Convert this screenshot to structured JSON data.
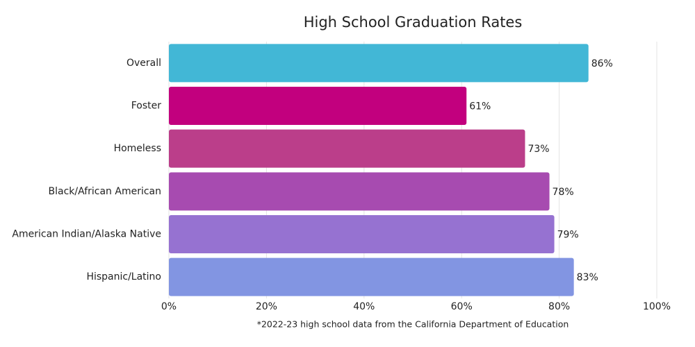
{
  "chart_data": {
    "type": "bar",
    "orientation": "horizontal",
    "title": "High School Graduation Rates",
    "categories": [
      "Overall",
      "Foster",
      "Homeless",
      "Black/African American",
      "American Indian/Alaska Native",
      "Hispanic/Latino"
    ],
    "values": [
      86,
      61,
      73,
      78,
      79,
      83
    ],
    "value_labels": [
      "86%",
      "61%",
      "73%",
      "78%",
      "79%",
      "83%"
    ],
    "colors": [
      "#42b7d6",
      "#c2007e",
      "#bb3e8a",
      "#a74bb0",
      "#9672d1",
      "#8295e2"
    ],
    "xlim": [
      0,
      100
    ],
    "xticks": [
      {
        "value": 0,
        "label": "0%"
      },
      {
        "value": 20,
        "label": "20%"
      },
      {
        "value": 40,
        "label": "40%"
      },
      {
        "value": 60,
        "label": "60%"
      },
      {
        "value": 80,
        "label": "80%"
      },
      {
        "value": 100,
        "label": "100%"
      }
    ],
    "grid": true,
    "note": "*2022-23 high school data from the California Department of Education"
  }
}
